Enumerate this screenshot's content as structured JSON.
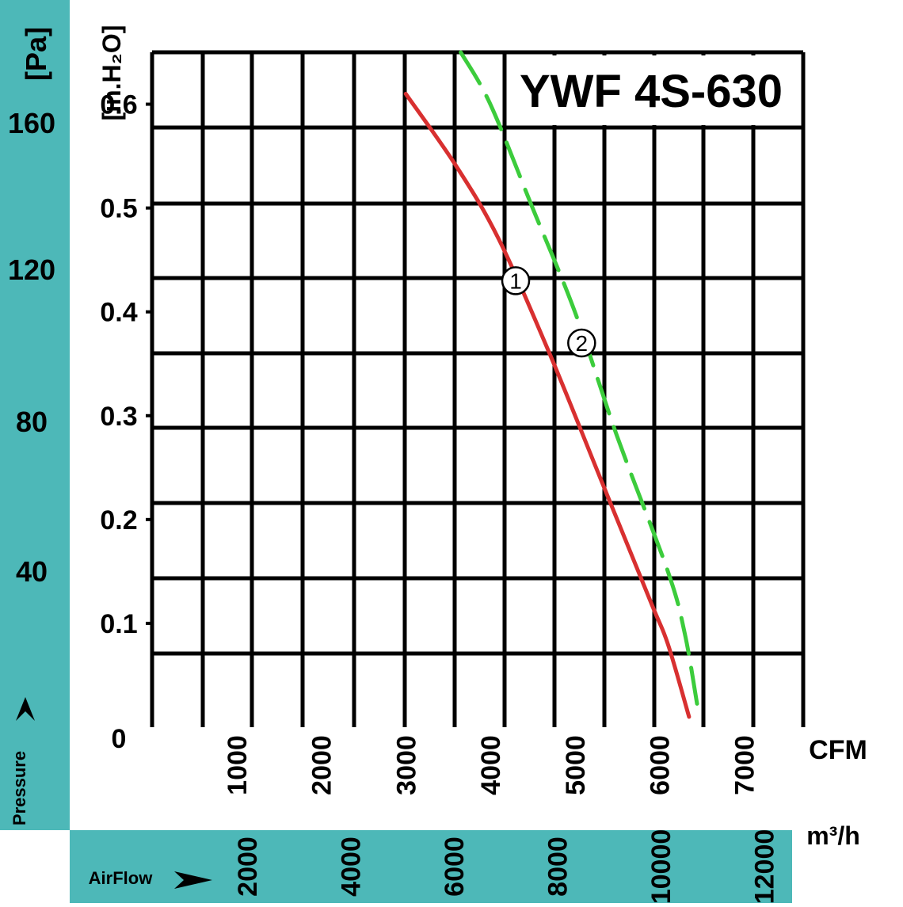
{
  "chart_data": {
    "type": "line",
    "title": "YWF 4S-630",
    "colors": {
      "panel": "#4db8b8",
      "grid": "#000000",
      "series_1": "#d83030",
      "series_2": "#3ccc3c"
    },
    "y_axis_left": {
      "unit_label": "[Pa]",
      "ticks": [
        {
          "value": 160,
          "label": "160"
        },
        {
          "value": 120,
          "label": "120"
        },
        {
          "value": 80,
          "label": "80"
        },
        {
          "value": 40,
          "label": "40"
        }
      ],
      "caption": "Pressure",
      "arrow": "up-arrow"
    },
    "y_axis_inner": {
      "unit_label": "[in.H₂O]",
      "range": [
        0,
        0.65
      ],
      "ticks": [
        {
          "value": 0.6,
          "label": "0.6"
        },
        {
          "value": 0.5,
          "label": "0.5"
        },
        {
          "value": 0.4,
          "label": "0.4"
        },
        {
          "value": 0.3,
          "label": "0.3"
        },
        {
          "value": 0.2,
          "label": "0.2"
        },
        {
          "value": 0.1,
          "label": "0.1"
        },
        {
          "value": 0,
          "label": "0"
        }
      ]
    },
    "x_axis_cfm": {
      "unit_label": "CFM",
      "range": [
        0,
        7700
      ],
      "ticks": [
        {
          "value": 1000,
          "label": "1000"
        },
        {
          "value": 2000,
          "label": "2000"
        },
        {
          "value": 3000,
          "label": "3000"
        },
        {
          "value": 4000,
          "label": "4000"
        },
        {
          "value": 5000,
          "label": "5000"
        },
        {
          "value": 6000,
          "label": "6000"
        },
        {
          "value": 7000,
          "label": "7000"
        }
      ]
    },
    "x_axis_m3h": {
      "unit_label": "m³/h",
      "caption": "AirFlow",
      "arrow": "right-arrow",
      "ticks": [
        {
          "value": 2000,
          "label": "2000"
        },
        {
          "value": 4000,
          "label": "4000"
        },
        {
          "value": 6000,
          "label": "6000"
        },
        {
          "value": 8000,
          "label": "8000"
        },
        {
          "value": 10000,
          "label": "10000"
        },
        {
          "value": 12000,
          "label": "12000"
        }
      ]
    },
    "series": [
      {
        "id": "1",
        "label": "①",
        "style": "solid",
        "label_at": {
          "x": 4300,
          "y": 0.43
        },
        "points": [
          {
            "x": 3000,
            "y": 0.61
          },
          {
            "x": 3600,
            "y": 0.54
          },
          {
            "x": 4100,
            "y": 0.47
          },
          {
            "x": 4700,
            "y": 0.36
          },
          {
            "x": 5300,
            "y": 0.24
          },
          {
            "x": 5900,
            "y": 0.12
          },
          {
            "x": 6100,
            "y": 0.08
          },
          {
            "x": 6350,
            "y": 0.01
          }
        ]
      },
      {
        "id": "2",
        "label": "②",
        "style": "dashed",
        "label_at": {
          "x": 5080,
          "y": 0.37
        },
        "points": [
          {
            "x": 3650,
            "y": 0.65
          },
          {
            "x": 4000,
            "y": 0.6
          },
          {
            "x": 4500,
            "y": 0.5
          },
          {
            "x": 5000,
            "y": 0.4
          },
          {
            "x": 5500,
            "y": 0.28
          },
          {
            "x": 6100,
            "y": 0.15
          },
          {
            "x": 6300,
            "y": 0.09
          },
          {
            "x": 6450,
            "y": 0.02
          }
        ]
      }
    ]
  }
}
